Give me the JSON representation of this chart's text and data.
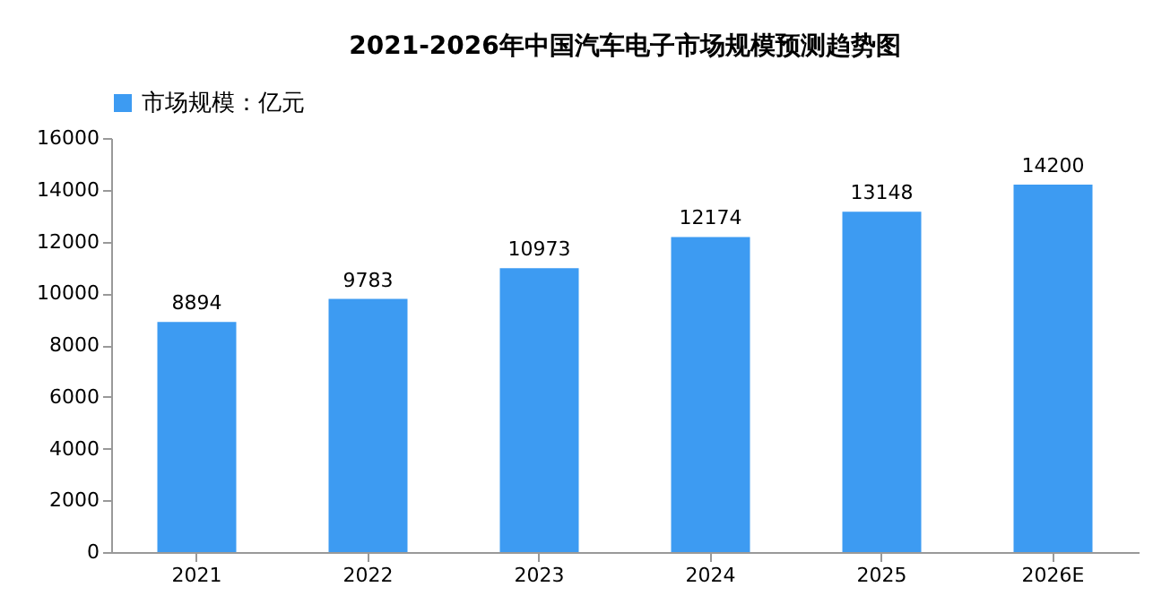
{
  "chart_data": {
    "type": "bar",
    "title": "2021-2026年中国汽车电子市场规模预测趋势图",
    "categories": [
      "2021",
      "2022",
      "2023",
      "2024",
      "2025",
      "2026E"
    ],
    "series": [
      {
        "name": "市场规模：亿元",
        "color": "#3d9bf2",
        "values": [
          8894,
          9783,
          10973,
          12174,
          13148,
          14200
        ]
      }
    ],
    "ylim": [
      0,
      16000
    ],
    "yticks": [
      0,
      2000,
      4000,
      6000,
      8000,
      10000,
      12000,
      14000,
      16000
    ],
    "data_labels": true,
    "legend": "top",
    "grid": false
  }
}
